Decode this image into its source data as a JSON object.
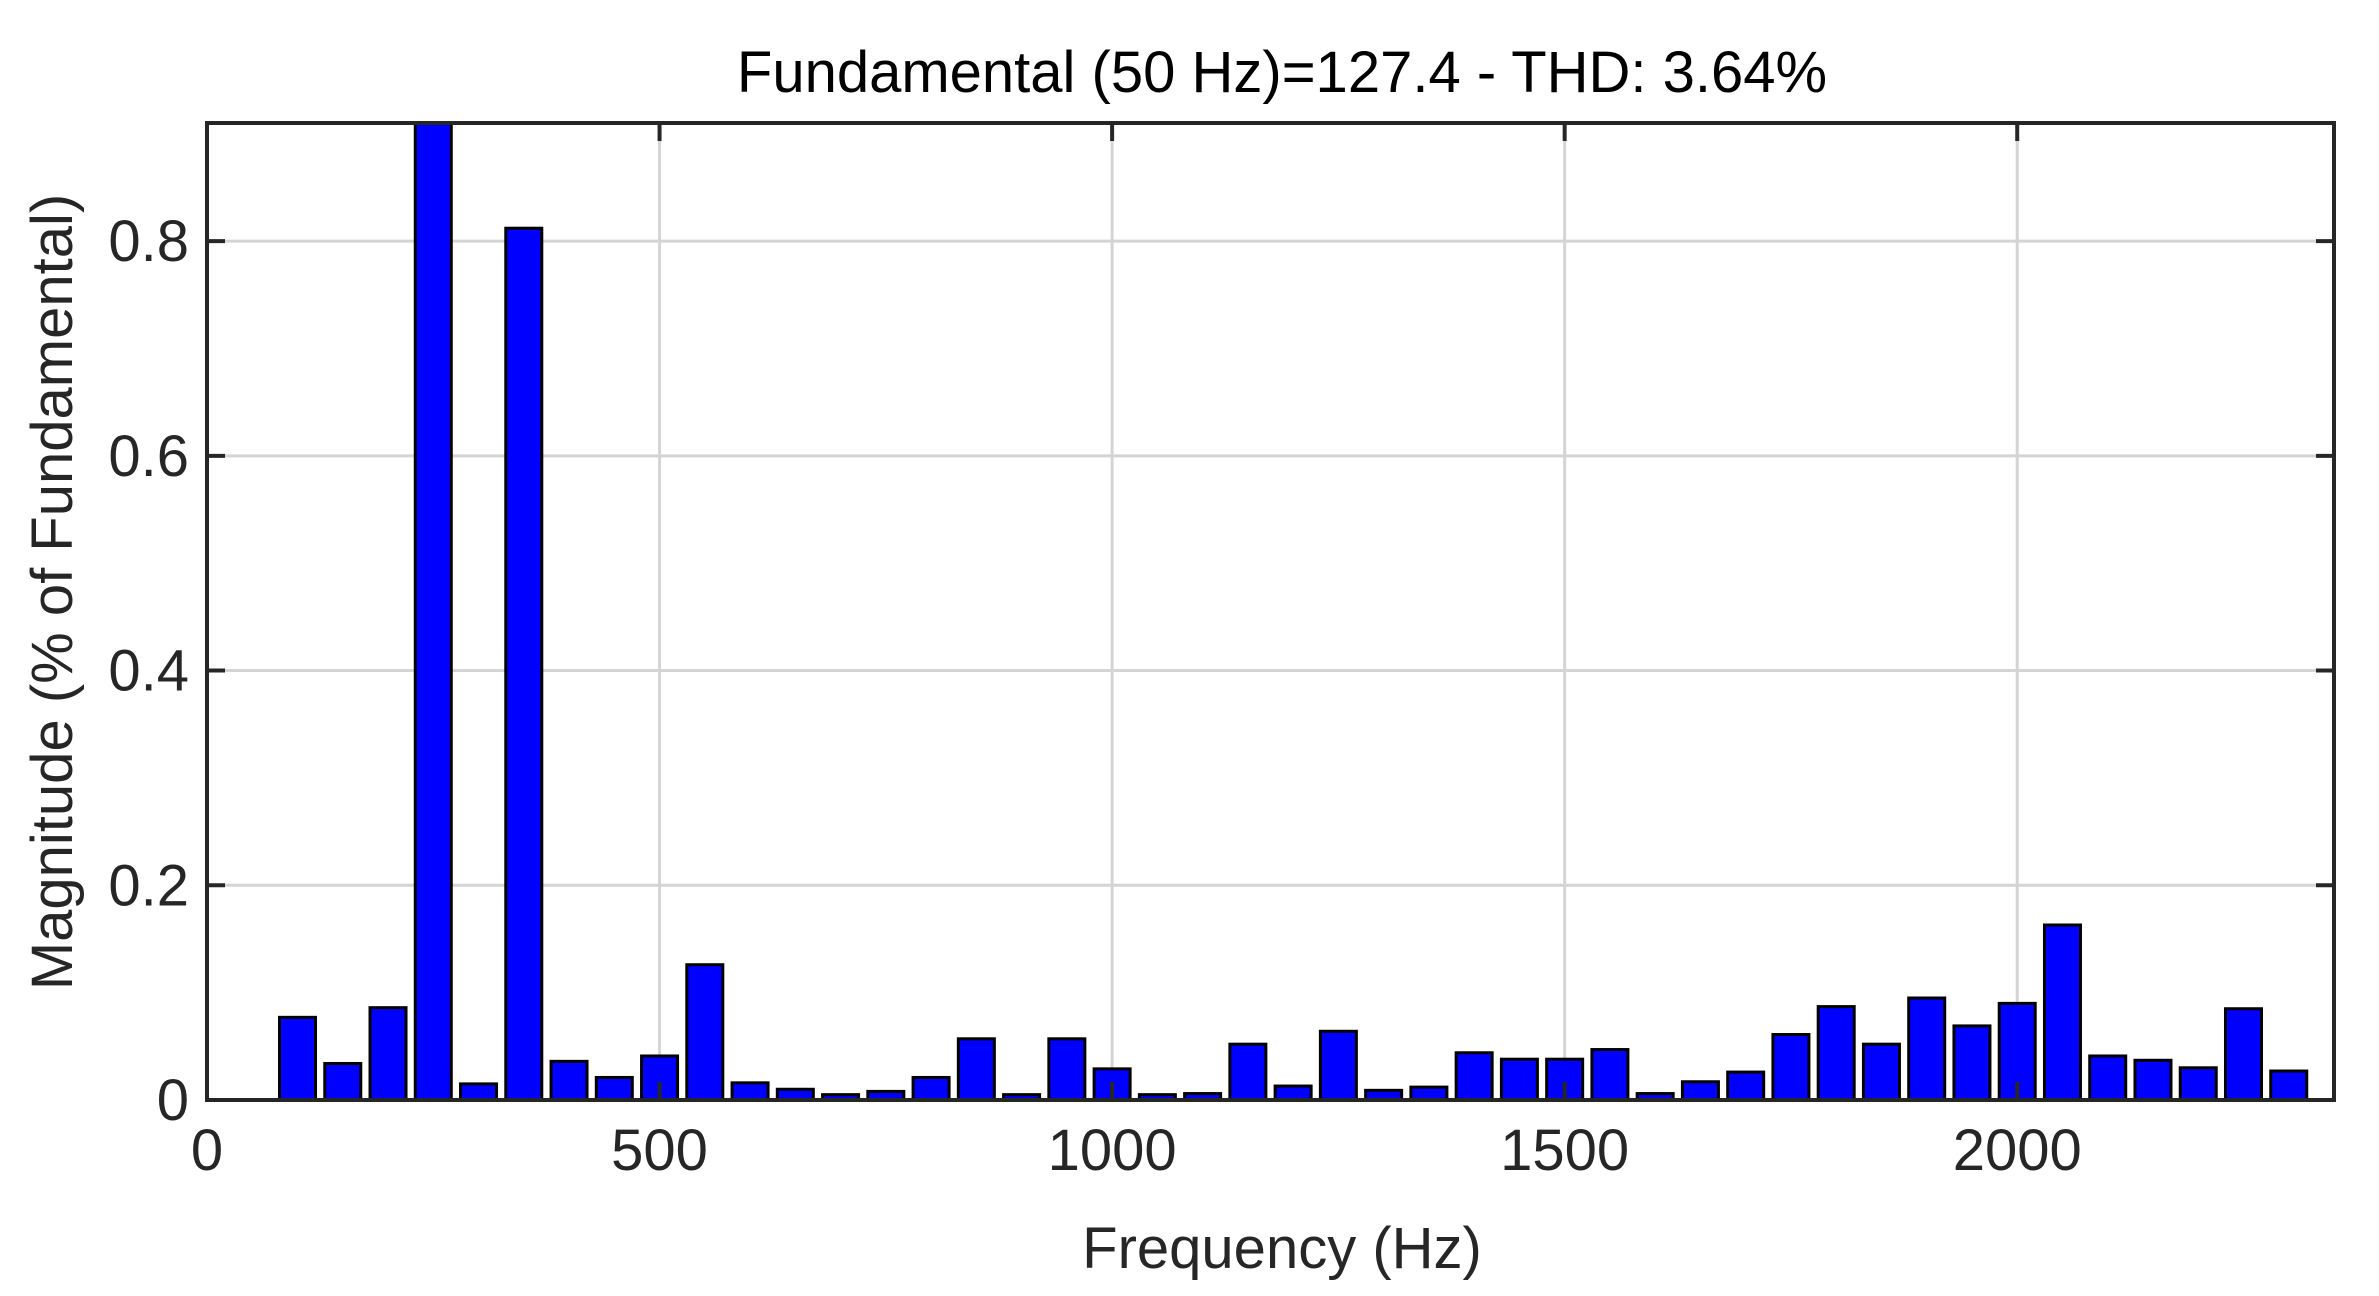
{
  "chart_data": {
    "type": "bar",
    "title": "Fundamental (50 Hz)=127.4 - THD: 3.64%",
    "xlabel": "Frequency (Hz)",
    "ylabel": "Magnitude (% of Fundamental)",
    "xlim": [
      0,
      2350
    ],
    "ylim": [
      0,
      0.91
    ],
    "xticks": [
      "0",
      "500",
      "1000",
      "1500",
      "2000"
    ],
    "yticks": [
      "0",
      "0.2",
      "0.4",
      "0.6",
      "0.8"
    ],
    "xtick_values": [
      0,
      500,
      1000,
      1500,
      2000
    ],
    "ytick_values": [
      0,
      0.2,
      0.4,
      0.6,
      0.8
    ],
    "grid": true,
    "bar_color": "#0000ff",
    "bar_edge_color": "#000000",
    "x": [
      100,
      150,
      200,
      250,
      300,
      350,
      400,
      450,
      500,
      550,
      600,
      650,
      700,
      750,
      800,
      850,
      900,
      950,
      1000,
      1050,
      1100,
      1150,
      1200,
      1250,
      1300,
      1350,
      1400,
      1450,
      1500,
      1550,
      1600,
      1650,
      1700,
      1750,
      1800,
      1850,
      1900,
      1950,
      2000,
      2050,
      2100,
      2150,
      2200,
      2250,
      2300
    ],
    "values": [
      0.077,
      0.034,
      0.086,
      0.91,
      0.015,
      0.812,
      0.036,
      0.021,
      0.041,
      0.126,
      0.016,
      0.01,
      0.005,
      0.008,
      0.021,
      0.057,
      0.005,
      0.057,
      0.029,
      0.005,
      0.006,
      0.052,
      0.013,
      0.064,
      0.009,
      0.012,
      0.044,
      0.038,
      0.038,
      0.047,
      0.006,
      0.017,
      0.026,
      0.061,
      0.087,
      0.052,
      0.095,
      0.069,
      0.09,
      0.163,
      0.041,
      0.037,
      0.03,
      0.085,
      0.027
    ]
  }
}
